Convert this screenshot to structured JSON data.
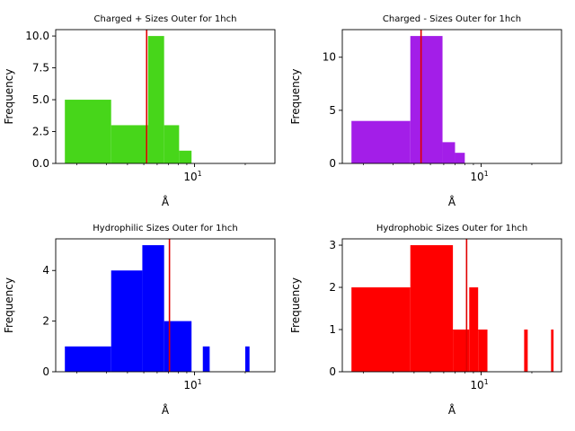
{
  "chart_data": [
    {
      "type": "bar",
      "title": "Charged + Sizes Outer for 1hch",
      "xlabel": "Å",
      "ylabel": "Frequency",
      "xscale": "log",
      "xlim": [
        1.5,
        30
      ],
      "ylim": [
        0,
        10.5
      ],
      "yticks": [
        "0.0",
        "2.5",
        "5.0",
        "7.5",
        "10.0"
      ],
      "xticks": [
        {
          "value": 10,
          "base": "10",
          "exp": "1"
        }
      ],
      "bar_color": "#47d61a",
      "bars": [
        {
          "x0": 1.7,
          "x1": 3.2,
          "count": 5
        },
        {
          "x0": 3.2,
          "x1": 5.3,
          "count": 3
        },
        {
          "x0": 5.3,
          "x1": 6.6,
          "count": 10
        },
        {
          "x0": 6.6,
          "x1": 8.1,
          "count": 3
        },
        {
          "x0": 8.1,
          "x1": 9.6,
          "count": 1
        }
      ],
      "vline": {
        "x": 5.2,
        "color": "#e00000"
      }
    },
    {
      "type": "bar",
      "title": "Charged - Sizes Outer for 1hch",
      "xlabel": "Å",
      "ylabel": "Frequency",
      "xscale": "log",
      "xlim": [
        1.5,
        30
      ],
      "ylim": [
        0,
        12.6
      ],
      "yticks": [
        "0",
        "5",
        "10"
      ],
      "xticks": [
        {
          "value": 10,
          "base": "10",
          "exp": "1"
        }
      ],
      "bar_color": "#a31ee8",
      "bars": [
        {
          "x0": 1.7,
          "x1": 3.8,
          "count": 4
        },
        {
          "x0": 3.8,
          "x1": 5.9,
          "count": 12
        },
        {
          "x0": 5.9,
          "x1": 7.0,
          "count": 2
        },
        {
          "x0": 7.0,
          "x1": 8.0,
          "count": 1
        }
      ],
      "vline": {
        "x": 4.4,
        "color": "#e00000"
      }
    },
    {
      "type": "bar",
      "title": "Hydrophilic Sizes Outer for 1hch",
      "xlabel": "Å",
      "ylabel": "Frequency",
      "xscale": "log",
      "xlim": [
        1.5,
        30
      ],
      "ylim": [
        0,
        5.25
      ],
      "yticks": [
        "0",
        "2",
        "4"
      ],
      "xticks": [
        {
          "value": 10,
          "base": "10",
          "exp": "1"
        }
      ],
      "bar_color": "#0000ff",
      "bars": [
        {
          "x0": 1.7,
          "x1": 3.2,
          "count": 1
        },
        {
          "x0": 3.2,
          "x1": 4.9,
          "count": 4
        },
        {
          "x0": 4.9,
          "x1": 6.6,
          "count": 5
        },
        {
          "x0": 6.6,
          "x1": 9.6,
          "count": 2
        },
        {
          "x0": 11.2,
          "x1": 12.3,
          "count": 1
        },
        {
          "x0": 20.0,
          "x1": 21.2,
          "count": 1
        }
      ],
      "vline": {
        "x": 7.1,
        "color": "#e00000"
      }
    },
    {
      "type": "bar",
      "title": "Hydrophobic Sizes Outer for 1hch",
      "xlabel": "Å",
      "ylabel": "Frequency",
      "xscale": "log",
      "xlim": [
        1.5,
        30
      ],
      "ylim": [
        0,
        3.15
      ],
      "yticks": [
        "0",
        "1",
        "2",
        "3"
      ],
      "xticks": [
        {
          "value": 10,
          "base": "10",
          "exp": "1"
        }
      ],
      "bar_color": "#ff0000",
      "bars": [
        {
          "x0": 1.7,
          "x1": 3.8,
          "count": 2
        },
        {
          "x0": 3.8,
          "x1": 6.8,
          "count": 3
        },
        {
          "x0": 6.8,
          "x1": 8.5,
          "count": 1
        },
        {
          "x0": 8.5,
          "x1": 9.6,
          "count": 2
        },
        {
          "x0": 9.6,
          "x1": 10.9,
          "count": 1
        },
        {
          "x0": 18.0,
          "x1": 18.9,
          "count": 1
        },
        {
          "x0": 26.0,
          "x1": 26.9,
          "count": 1
        }
      ],
      "vline": {
        "x": 8.2,
        "color": "#e00000"
      }
    }
  ]
}
